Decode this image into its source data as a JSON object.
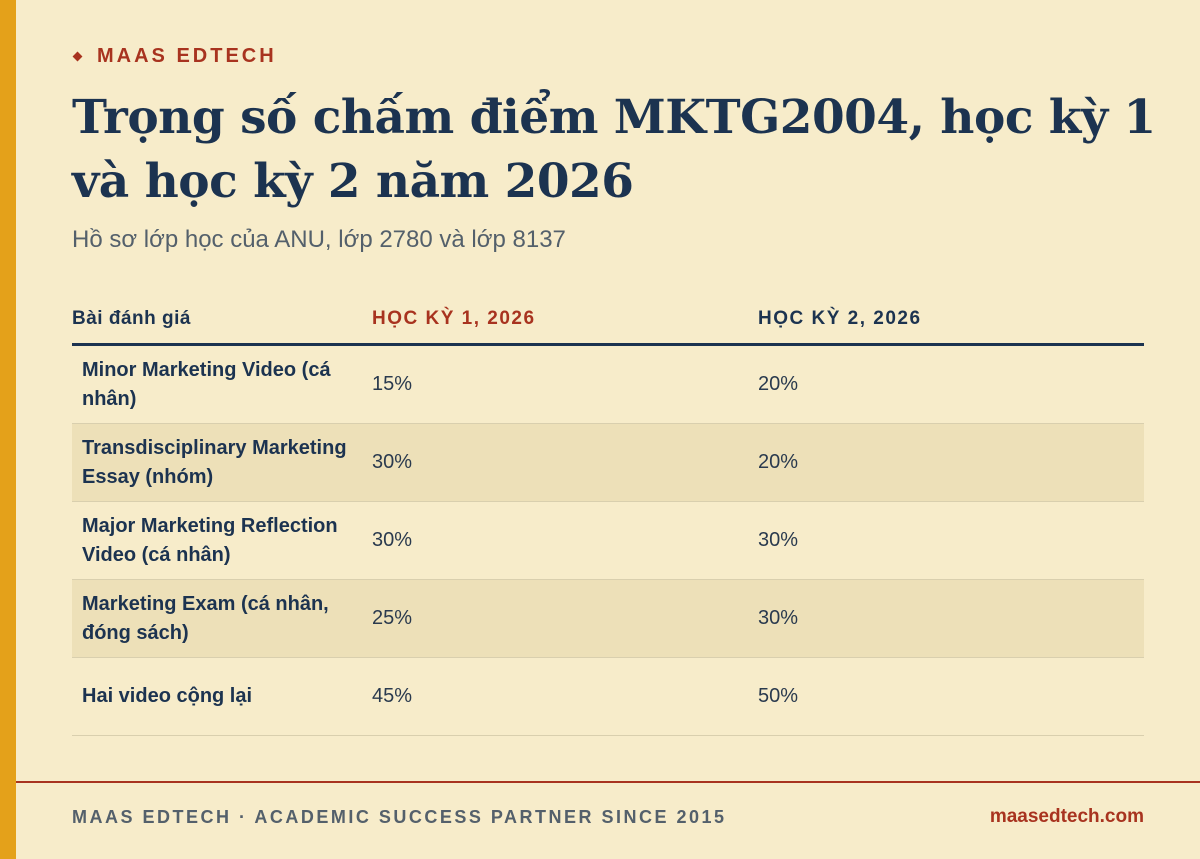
{
  "brand": "MAAS EDTECH",
  "title": "Trọng số chấm điểm MKTG2004, học kỳ 1 và học kỳ 2 năm 2026",
  "subtitle": "Hồ sơ lớp học của ANU, lớp 2780 và lớp 8137",
  "table": {
    "headers": [
      "Bài đánh giá",
      "HỌC KỲ 1, 2026",
      "HỌC KỲ 2, 2026"
    ],
    "rows": [
      {
        "assessment": "Minor Marketing Video (cá nhân)",
        "s1": "15%",
        "s2": "20%"
      },
      {
        "assessment": "Transdisciplinary Marketing Essay (nhóm)",
        "s1": "30%",
        "s2": "20%"
      },
      {
        "assessment": "Major Marketing Reflection Video (cá nhân)",
        "s1": "30%",
        "s2": "30%"
      },
      {
        "assessment": "Marketing Exam (cá nhân, đóng sách)",
        "s1": "25%",
        "s2": "30%"
      },
      {
        "assessment": "Hai video cộng lại",
        "s1": "45%",
        "s2": "50%"
      }
    ]
  },
  "footer": {
    "left": "MAAS EDTECH · ACADEMIC SUCCESS PARTNER SINCE 2015",
    "right": "maasedtech.com"
  },
  "colors": {
    "background": "#f7ecca",
    "accent_bar": "#e4a11a",
    "brand_red": "#a8331f",
    "navy": "#1c3350",
    "alt_row": "#ede0b8"
  }
}
